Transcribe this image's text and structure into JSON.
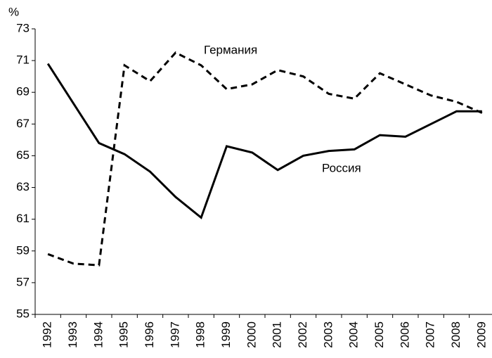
{
  "chart_data": {
    "type": "line",
    "y_unit": "%",
    "categories": [
      "1992",
      "1993",
      "1994",
      "1995",
      "1996",
      "1997",
      "1998",
      "1999",
      "2000",
      "2001",
      "2002",
      "2003",
      "2004",
      "2005",
      "2006",
      "2007",
      "2008",
      "2009"
    ],
    "series": [
      {
        "name": "Германия",
        "color": "#000000",
        "dash": true,
        "values": [
          58.8,
          58.2,
          58.1,
          70.7,
          69.7,
          71.5,
          70.7,
          69.2,
          69.5,
          70.4,
          70.0,
          68.9,
          68.6,
          70.2,
          69.5,
          68.8,
          68.4,
          67.7
        ]
      },
      {
        "name": "Россия",
        "color": "#000000",
        "dash": false,
        "values": [
          70.8,
          68.3,
          65.8,
          65.1,
          64.0,
          62.4,
          61.1,
          65.6,
          65.2,
          64.1,
          65.0,
          65.3,
          65.4,
          66.3,
          66.2,
          67.0,
          67.8,
          67.8
        ]
      }
    ],
    "ylim": [
      55,
      73
    ],
    "yticks": [
      55,
      57,
      59,
      61,
      63,
      65,
      67,
      69,
      71,
      73
    ],
    "grid": false
  }
}
